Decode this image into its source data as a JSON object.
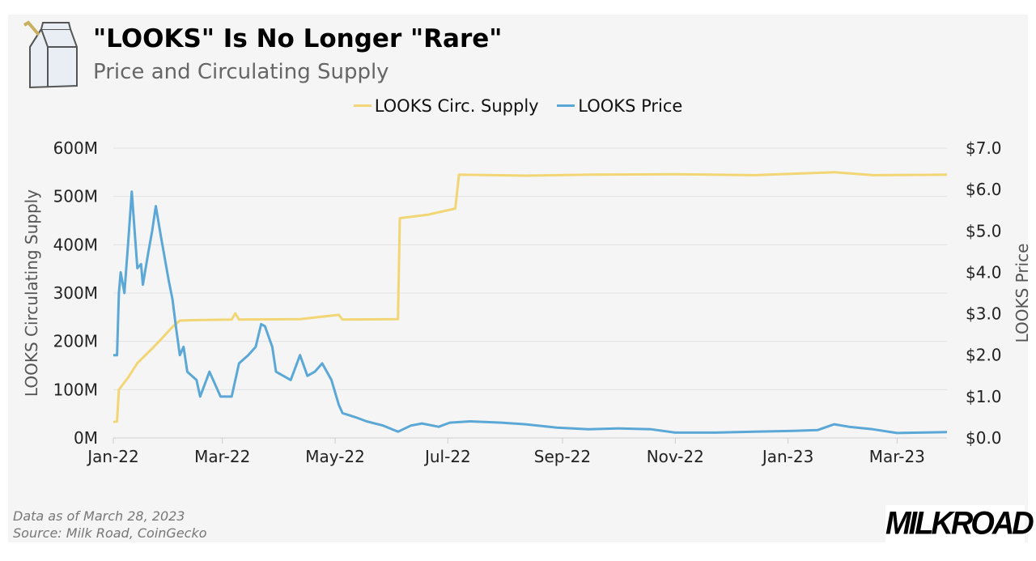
{
  "header": {
    "title": "\"LOOKS\" Is No Longer \"Rare\"",
    "subtitle": "Price and Circulating Supply",
    "logo_icon": "milk-carton-icon"
  },
  "footer": {
    "note": "Data as of March 28, 2023",
    "source": "Source: Milk Road, CoinGecko",
    "brand": "MILKROAD"
  },
  "chart_data": {
    "type": "line",
    "title": "\"LOOKS\" Is No Longer \"Rare\"",
    "subtitle": "Price and Circulating Supply",
    "legend_position": "top-center",
    "grid": true,
    "x_range": [
      "2022-01-01",
      "2023-03-28"
    ],
    "x_ticks": [
      "Jan-22",
      "Mar-22",
      "May-22",
      "Jul-22",
      "Sep-22",
      "Nov-22",
      "Jan-23",
      "Mar-23"
    ],
    "x_tick_dates": [
      "2022-01-01",
      "2022-03-01",
      "2022-05-01",
      "2022-07-01",
      "2022-09-01",
      "2022-11-01",
      "2023-01-01",
      "2023-03-01"
    ],
    "y_left": {
      "label": "LOOKS Circulating Supply",
      "range": [
        0,
        600000000
      ],
      "ticks": [
        "0M",
        "100M",
        "200M",
        "300M",
        "400M",
        "500M",
        "600M"
      ]
    },
    "y_right": {
      "label": "LOOKS Price",
      "range": [
        0,
        7
      ],
      "ticks": [
        "$0.0",
        "$1.0",
        "$2.0",
        "$3.0",
        "$4.0",
        "$5.0",
        "$6.0",
        "$7.0"
      ]
    },
    "series": [
      {
        "name": "LOOKS Circ. Supply",
        "axis": "left",
        "color": "#f2d675",
        "points": [
          [
            "2022-01-01",
            33000000
          ],
          [
            "2022-01-03",
            34000000
          ],
          [
            "2022-01-04",
            100000000
          ],
          [
            "2022-01-09",
            125000000
          ],
          [
            "2022-01-14",
            155000000
          ],
          [
            "2022-01-22",
            185000000
          ],
          [
            "2022-01-27",
            205000000
          ],
          [
            "2022-02-02",
            230000000
          ],
          [
            "2022-02-06",
            243000000
          ],
          [
            "2022-02-15",
            244000000
          ],
          [
            "2022-03-06",
            245000000
          ],
          [
            "2022-03-08",
            258000000
          ],
          [
            "2022-03-10",
            245000000
          ],
          [
            "2022-04-12",
            246000000
          ],
          [
            "2022-05-03",
            255000000
          ],
          [
            "2022-05-05",
            245000000
          ],
          [
            "2022-06-04",
            246000000
          ],
          [
            "2022-06-05",
            455000000
          ],
          [
            "2022-06-20",
            462000000
          ],
          [
            "2022-07-05",
            475000000
          ],
          [
            "2022-07-07",
            545000000
          ],
          [
            "2022-08-12",
            543000000
          ],
          [
            "2022-09-15",
            545000000
          ],
          [
            "2022-11-01",
            546000000
          ],
          [
            "2022-12-14",
            544000000
          ],
          [
            "2023-01-26",
            550000000
          ],
          [
            "2023-02-16",
            544000000
          ],
          [
            "2023-03-28",
            545000000
          ]
        ]
      },
      {
        "name": "LOOKS Price",
        "axis": "right",
        "color": "#5ba8d6",
        "points": [
          [
            "2022-01-01",
            2.0
          ],
          [
            "2022-01-03",
            2.0
          ],
          [
            "2022-01-04",
            3.5
          ],
          [
            "2022-01-05",
            4.0
          ],
          [
            "2022-01-07",
            3.5
          ],
          [
            "2022-01-09",
            4.7
          ],
          [
            "2022-01-11",
            5.95
          ],
          [
            "2022-01-14",
            4.1
          ],
          [
            "2022-01-16",
            4.2
          ],
          [
            "2022-01-17",
            3.7
          ],
          [
            "2022-01-20",
            4.5
          ],
          [
            "2022-01-22",
            5.0
          ],
          [
            "2022-01-24",
            5.6
          ],
          [
            "2022-01-27",
            4.8
          ],
          [
            "2022-01-31",
            3.8
          ],
          [
            "2022-02-02",
            3.35
          ],
          [
            "2022-02-04",
            2.65
          ],
          [
            "2022-02-06",
            2.0
          ],
          [
            "2022-02-08",
            2.2
          ],
          [
            "2022-02-10",
            1.6
          ],
          [
            "2022-02-15",
            1.4
          ],
          [
            "2022-02-17",
            1.0
          ],
          [
            "2022-02-22",
            1.6
          ],
          [
            "2022-02-28",
            1.0
          ],
          [
            "2022-03-06",
            1.0
          ],
          [
            "2022-03-10",
            1.8
          ],
          [
            "2022-03-15",
            2.0
          ],
          [
            "2022-03-19",
            2.2
          ],
          [
            "2022-03-22",
            2.75
          ],
          [
            "2022-03-24",
            2.7
          ],
          [
            "2022-03-28",
            2.2
          ],
          [
            "2022-03-30",
            1.6
          ],
          [
            "2022-04-03",
            1.5
          ],
          [
            "2022-04-07",
            1.4
          ],
          [
            "2022-04-12",
            2.0
          ],
          [
            "2022-04-16",
            1.5
          ],
          [
            "2022-04-20",
            1.6
          ],
          [
            "2022-04-24",
            1.8
          ],
          [
            "2022-04-29",
            1.4
          ],
          [
            "2022-05-03",
            0.8
          ],
          [
            "2022-05-05",
            0.6
          ],
          [
            "2022-05-12",
            0.5
          ],
          [
            "2022-05-18",
            0.4
          ],
          [
            "2022-05-27",
            0.3
          ],
          [
            "2022-06-04",
            0.15
          ],
          [
            "2022-06-11",
            0.3
          ],
          [
            "2022-06-17",
            0.35
          ],
          [
            "2022-06-26",
            0.27
          ],
          [
            "2022-07-02",
            0.37
          ],
          [
            "2022-07-13",
            0.4
          ],
          [
            "2022-07-30",
            0.37
          ],
          [
            "2022-08-12",
            0.33
          ],
          [
            "2022-08-29",
            0.25
          ],
          [
            "2022-09-15",
            0.21
          ],
          [
            "2022-10-02",
            0.23
          ],
          [
            "2022-10-19",
            0.21
          ],
          [
            "2022-11-01",
            0.13
          ],
          [
            "2022-11-23",
            0.13
          ],
          [
            "2022-12-14",
            0.15
          ],
          [
            "2023-01-04",
            0.17
          ],
          [
            "2023-01-17",
            0.19
          ],
          [
            "2023-01-26",
            0.33
          ],
          [
            "2023-02-03",
            0.27
          ],
          [
            "2023-02-16",
            0.21
          ],
          [
            "2023-03-01",
            0.12
          ],
          [
            "2023-03-28",
            0.14
          ]
        ]
      }
    ]
  }
}
